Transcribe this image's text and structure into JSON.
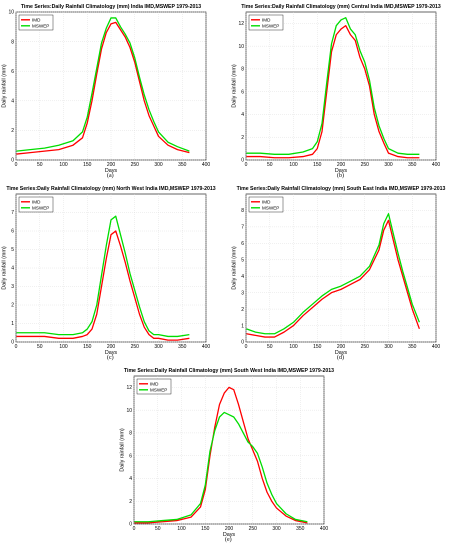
{
  "chart_data": [
    {
      "type": "line",
      "title": "Time Series:Daily Rainfall Climatology (mm) India IMD,MSWEP 1979-2013",
      "xlabel": "Days",
      "ylabel": "Daily rainfall (mm)",
      "xlim": [
        0,
        400
      ],
      "ylim": [
        0,
        10
      ],
      "xticks": [
        0,
        50,
        100,
        150,
        200,
        250,
        300,
        350,
        400
      ],
      "yticks": [
        0,
        2,
        4,
        6,
        8,
        10
      ],
      "caption": "(a)",
      "legend_position": "top-left",
      "grid": true,
      "series": [
        {
          "name": "IMD",
          "color": "#ff0000",
          "x": [
            1,
            30,
            60,
            90,
            120,
            140,
            150,
            160,
            170,
            180,
            190,
            200,
            210,
            220,
            230,
            240,
            250,
            260,
            270,
            280,
            290,
            300,
            320,
            340,
            365
          ],
          "values": [
            0.4,
            0.5,
            0.6,
            0.7,
            1.0,
            1.5,
            2.5,
            4.0,
            5.8,
            7.5,
            8.6,
            9.2,
            9.3,
            8.8,
            8.3,
            7.6,
            6.6,
            5.3,
            4.0,
            3.0,
            2.3,
            1.6,
            1.0,
            0.7,
            0.5
          ]
        },
        {
          "name": "MSWEP",
          "color": "#00dd00",
          "x": [
            1,
            30,
            60,
            90,
            120,
            140,
            150,
            160,
            170,
            180,
            190,
            200,
            210,
            220,
            230,
            240,
            250,
            260,
            270,
            280,
            290,
            300,
            320,
            340,
            365
          ],
          "values": [
            0.6,
            0.7,
            0.8,
            1.0,
            1.3,
            1.9,
            2.9,
            4.5,
            6.2,
            7.9,
            8.9,
            9.6,
            9.6,
            9.0,
            8.5,
            7.9,
            6.9,
            5.6,
            4.4,
            3.4,
            2.6,
            1.9,
            1.2,
            0.9,
            0.6
          ]
        }
      ]
    },
    {
      "type": "line",
      "title": "Time Series:Daily Rainfall Climatology (mm) Central India IMD,MSWEP 1979-2013",
      "xlabel": "Days",
      "ylabel": "Daily rainfall (mm)",
      "xlim": [
        0,
        400
      ],
      "ylim": [
        0,
        13
      ],
      "xticks": [
        0,
        50,
        100,
        150,
        200,
        250,
        300,
        350,
        400
      ],
      "yticks": [
        0,
        2,
        4,
        6,
        8,
        10,
        12
      ],
      "caption": "(b)",
      "legend_position": "top-left",
      "grid": true,
      "series": [
        {
          "name": "IMD",
          "color": "#ff0000",
          "x": [
            1,
            30,
            60,
            90,
            120,
            140,
            150,
            160,
            170,
            180,
            190,
            200,
            210,
            220,
            230,
            240,
            250,
            260,
            270,
            280,
            290,
            300,
            320,
            340,
            365
          ],
          "values": [
            0.3,
            0.3,
            0.2,
            0.2,
            0.3,
            0.5,
            1.0,
            2.5,
            6.0,
            9.5,
            11.0,
            11.5,
            11.8,
            11.0,
            10.5,
            9.0,
            8.0,
            6.5,
            4.0,
            2.5,
            1.5,
            0.6,
            0.3,
            0.2,
            0.2
          ]
        },
        {
          "name": "MSWEP",
          "color": "#00dd00",
          "x": [
            1,
            30,
            60,
            90,
            120,
            140,
            150,
            160,
            170,
            180,
            190,
            200,
            210,
            220,
            230,
            240,
            250,
            260,
            270,
            280,
            290,
            300,
            320,
            340,
            365
          ],
          "values": [
            0.6,
            0.6,
            0.5,
            0.5,
            0.7,
            1.0,
            1.6,
            3.2,
            6.8,
            10.2,
            11.8,
            12.3,
            12.5,
            11.5,
            11.0,
            9.6,
            8.6,
            7.0,
            4.6,
            3.0,
            1.9,
            1.0,
            0.6,
            0.5,
            0.5
          ]
        }
      ]
    },
    {
      "type": "line",
      "title": "Time Series:Daily Rainfall Climatology (mm) North West India IMD,MSWEP 1979-2013",
      "xlabel": "Days",
      "ylabel": "Daily rainfall (mm)",
      "xlim": [
        0,
        400
      ],
      "ylim": [
        0,
        8
      ],
      "xticks": [
        0,
        50,
        100,
        150,
        200,
        250,
        300,
        350,
        400
      ],
      "yticks": [
        0,
        1,
        2,
        3,
        4,
        5,
        6,
        7
      ],
      "caption": "(c)",
      "legend_position": "top-left",
      "grid": true,
      "series": [
        {
          "name": "IMD",
          "color": "#ff0000",
          "x": [
            1,
            30,
            60,
            90,
            120,
            140,
            150,
            160,
            170,
            180,
            190,
            200,
            210,
            220,
            230,
            240,
            250,
            260,
            270,
            280,
            290,
            300,
            320,
            340,
            365
          ],
          "values": [
            0.3,
            0.3,
            0.3,
            0.2,
            0.2,
            0.3,
            0.4,
            0.7,
            1.5,
            3.0,
            4.5,
            5.8,
            6.0,
            5.2,
            4.3,
            3.3,
            2.4,
            1.5,
            0.8,
            0.4,
            0.2,
            0.2,
            0.1,
            0.1,
            0.2
          ]
        },
        {
          "name": "MSWEP",
          "color": "#00dd00",
          "x": [
            1,
            30,
            60,
            90,
            120,
            140,
            150,
            160,
            170,
            180,
            190,
            200,
            210,
            220,
            230,
            240,
            250,
            260,
            270,
            280,
            290,
            300,
            320,
            340,
            365
          ],
          "values": [
            0.5,
            0.5,
            0.5,
            0.4,
            0.4,
            0.5,
            0.7,
            1.1,
            2.0,
            3.6,
            5.2,
            6.6,
            6.8,
            5.8,
            4.8,
            3.7,
            2.8,
            1.9,
            1.1,
            0.6,
            0.4,
            0.4,
            0.3,
            0.3,
            0.4
          ]
        }
      ]
    },
    {
      "type": "line",
      "title": "Time Series:Daily Rainfall Climatology (mm) South East India IMD,MSWEP 1979-2013",
      "xlabel": "Days",
      "ylabel": "Daily rainfall (mm)",
      "xlim": [
        0,
        400
      ],
      "ylim": [
        0,
        9
      ],
      "xticks": [
        0,
        50,
        100,
        150,
        200,
        250,
        300,
        350,
        400
      ],
      "yticks": [
        0,
        1,
        2,
        3,
        4,
        5,
        6,
        7,
        8
      ],
      "caption": "(d)",
      "legend_position": "top-left",
      "grid": true,
      "series": [
        {
          "name": "IMD",
          "color": "#ff0000",
          "x": [
            1,
            20,
            40,
            60,
            80,
            100,
            120,
            140,
            160,
            180,
            200,
            220,
            240,
            260,
            280,
            290,
            300,
            310,
            320,
            330,
            340,
            350,
            365
          ],
          "values": [
            0.5,
            0.4,
            0.3,
            0.3,
            0.6,
            1.0,
            1.6,
            2.1,
            2.6,
            3.0,
            3.2,
            3.5,
            3.8,
            4.4,
            5.6,
            6.8,
            7.4,
            6.2,
            5.0,
            4.0,
            3.0,
            2.0,
            0.8
          ]
        },
        {
          "name": "MSWEP",
          "color": "#00dd00",
          "x": [
            1,
            20,
            40,
            60,
            80,
            100,
            120,
            140,
            160,
            180,
            200,
            220,
            240,
            260,
            280,
            290,
            300,
            310,
            320,
            330,
            340,
            350,
            365
          ],
          "values": [
            0.8,
            0.6,
            0.5,
            0.5,
            0.8,
            1.2,
            1.8,
            2.3,
            2.8,
            3.2,
            3.4,
            3.7,
            4.0,
            4.6,
            5.9,
            7.2,
            7.8,
            6.6,
            5.4,
            4.3,
            3.3,
            2.3,
            1.2
          ]
        }
      ]
    },
    {
      "type": "line",
      "title": "Time Series:Daily Rainfall Climatology (mm) South West India IMD,MSWEP 1979-2013",
      "xlabel": "Days",
      "ylabel": "Daily rainfall (mm)",
      "xlim": [
        0,
        400
      ],
      "ylim": [
        0,
        13
      ],
      "xticks": [
        0,
        50,
        100,
        150,
        200,
        250,
        300,
        350,
        400
      ],
      "yticks": [
        0,
        2,
        4,
        6,
        8,
        10,
        12
      ],
      "caption": "(e)",
      "legend_position": "top-left",
      "grid": true,
      "series": [
        {
          "name": "IMD",
          "color": "#ff0000",
          "x": [
            1,
            30,
            60,
            90,
            120,
            140,
            150,
            160,
            170,
            180,
            190,
            200,
            210,
            220,
            230,
            240,
            250,
            260,
            270,
            280,
            290,
            300,
            320,
            340,
            365
          ],
          "values": [
            0.1,
            0.1,
            0.2,
            0.3,
            0.6,
            1.5,
            3.0,
            6.0,
            8.5,
            10.5,
            11.5,
            12.0,
            11.8,
            10.5,
            9.0,
            7.5,
            6.5,
            5.5,
            4.0,
            2.8,
            2.0,
            1.4,
            0.7,
            0.3,
            0.1
          ]
        },
        {
          "name": "MSWEP",
          "color": "#00dd00",
          "x": [
            1,
            30,
            60,
            90,
            120,
            140,
            150,
            160,
            170,
            180,
            190,
            200,
            210,
            220,
            230,
            240,
            250,
            260,
            270,
            280,
            290,
            300,
            320,
            340,
            365
          ],
          "values": [
            0.2,
            0.2,
            0.3,
            0.4,
            0.8,
            1.8,
            3.4,
            6.4,
            8.2,
            9.4,
            9.8,
            9.6,
            9.4,
            8.8,
            8.0,
            7.2,
            6.8,
            6.2,
            5.0,
            3.6,
            2.6,
            1.8,
            0.9,
            0.4,
            0.2
          ]
        }
      ]
    }
  ]
}
